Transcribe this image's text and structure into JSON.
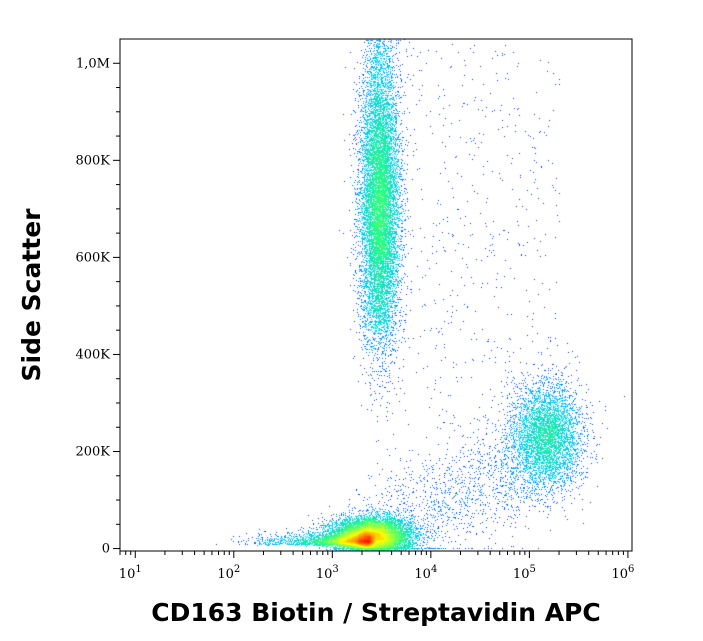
{
  "chart_data": {
    "type": "scatter",
    "style": "flow-cytometry density dot plot",
    "title": "",
    "xlabel": "CD163 Biotin / Streptavidin APC",
    "ylabel": "Side Scatter",
    "x_scale": "log",
    "xlim": [
      7,
      1100000
    ],
    "ylim": [
      -5000,
      1050000
    ],
    "y_ticks": [
      {
        "value": 0,
        "label": "0"
      },
      {
        "value": 200000,
        "label": "200K"
      },
      {
        "value": 400000,
        "label": "400K"
      },
      {
        "value": 600000,
        "label": "600K"
      },
      {
        "value": 800000,
        "label": "800K"
      },
      {
        "value": 1000000,
        "label": "1,0M"
      }
    ],
    "x_ticks": [
      {
        "value": 10,
        "base": "10",
        "exp": "1"
      },
      {
        "value": 100,
        "base": "10",
        "exp": "2"
      },
      {
        "value": 1000,
        "base": "10",
        "exp": "3"
      },
      {
        "value": 10000,
        "base": "10",
        "exp": "4"
      },
      {
        "value": 100000,
        "base": "10",
        "exp": "5"
      },
      {
        "value": 1000000,
        "base": "10",
        "exp": "6"
      }
    ],
    "populations": [
      {
        "center_x": 2500,
        "center_y": 25000,
        "spread_log_x": 0.2,
        "spread_y": 20000,
        "density": "very high"
      },
      {
        "center_x": 3000,
        "center_y": 700000,
        "spread_log_x": 0.1,
        "spread_y": 140000,
        "density": "high"
      },
      {
        "center_x": 150000,
        "center_y": 230000,
        "spread_log_x": 0.18,
        "spread_y": 55000,
        "density": "medium"
      }
    ],
    "grid": false,
    "legend": "none"
  },
  "colors": {
    "density_low": "#0000ff",
    "density_mid_low": "#00c8ff",
    "density_mid": "#30ff80",
    "density_mid_high": "#ffff00",
    "density_high": "#ff0000",
    "axis": "#000000",
    "background": "#ffffff"
  }
}
